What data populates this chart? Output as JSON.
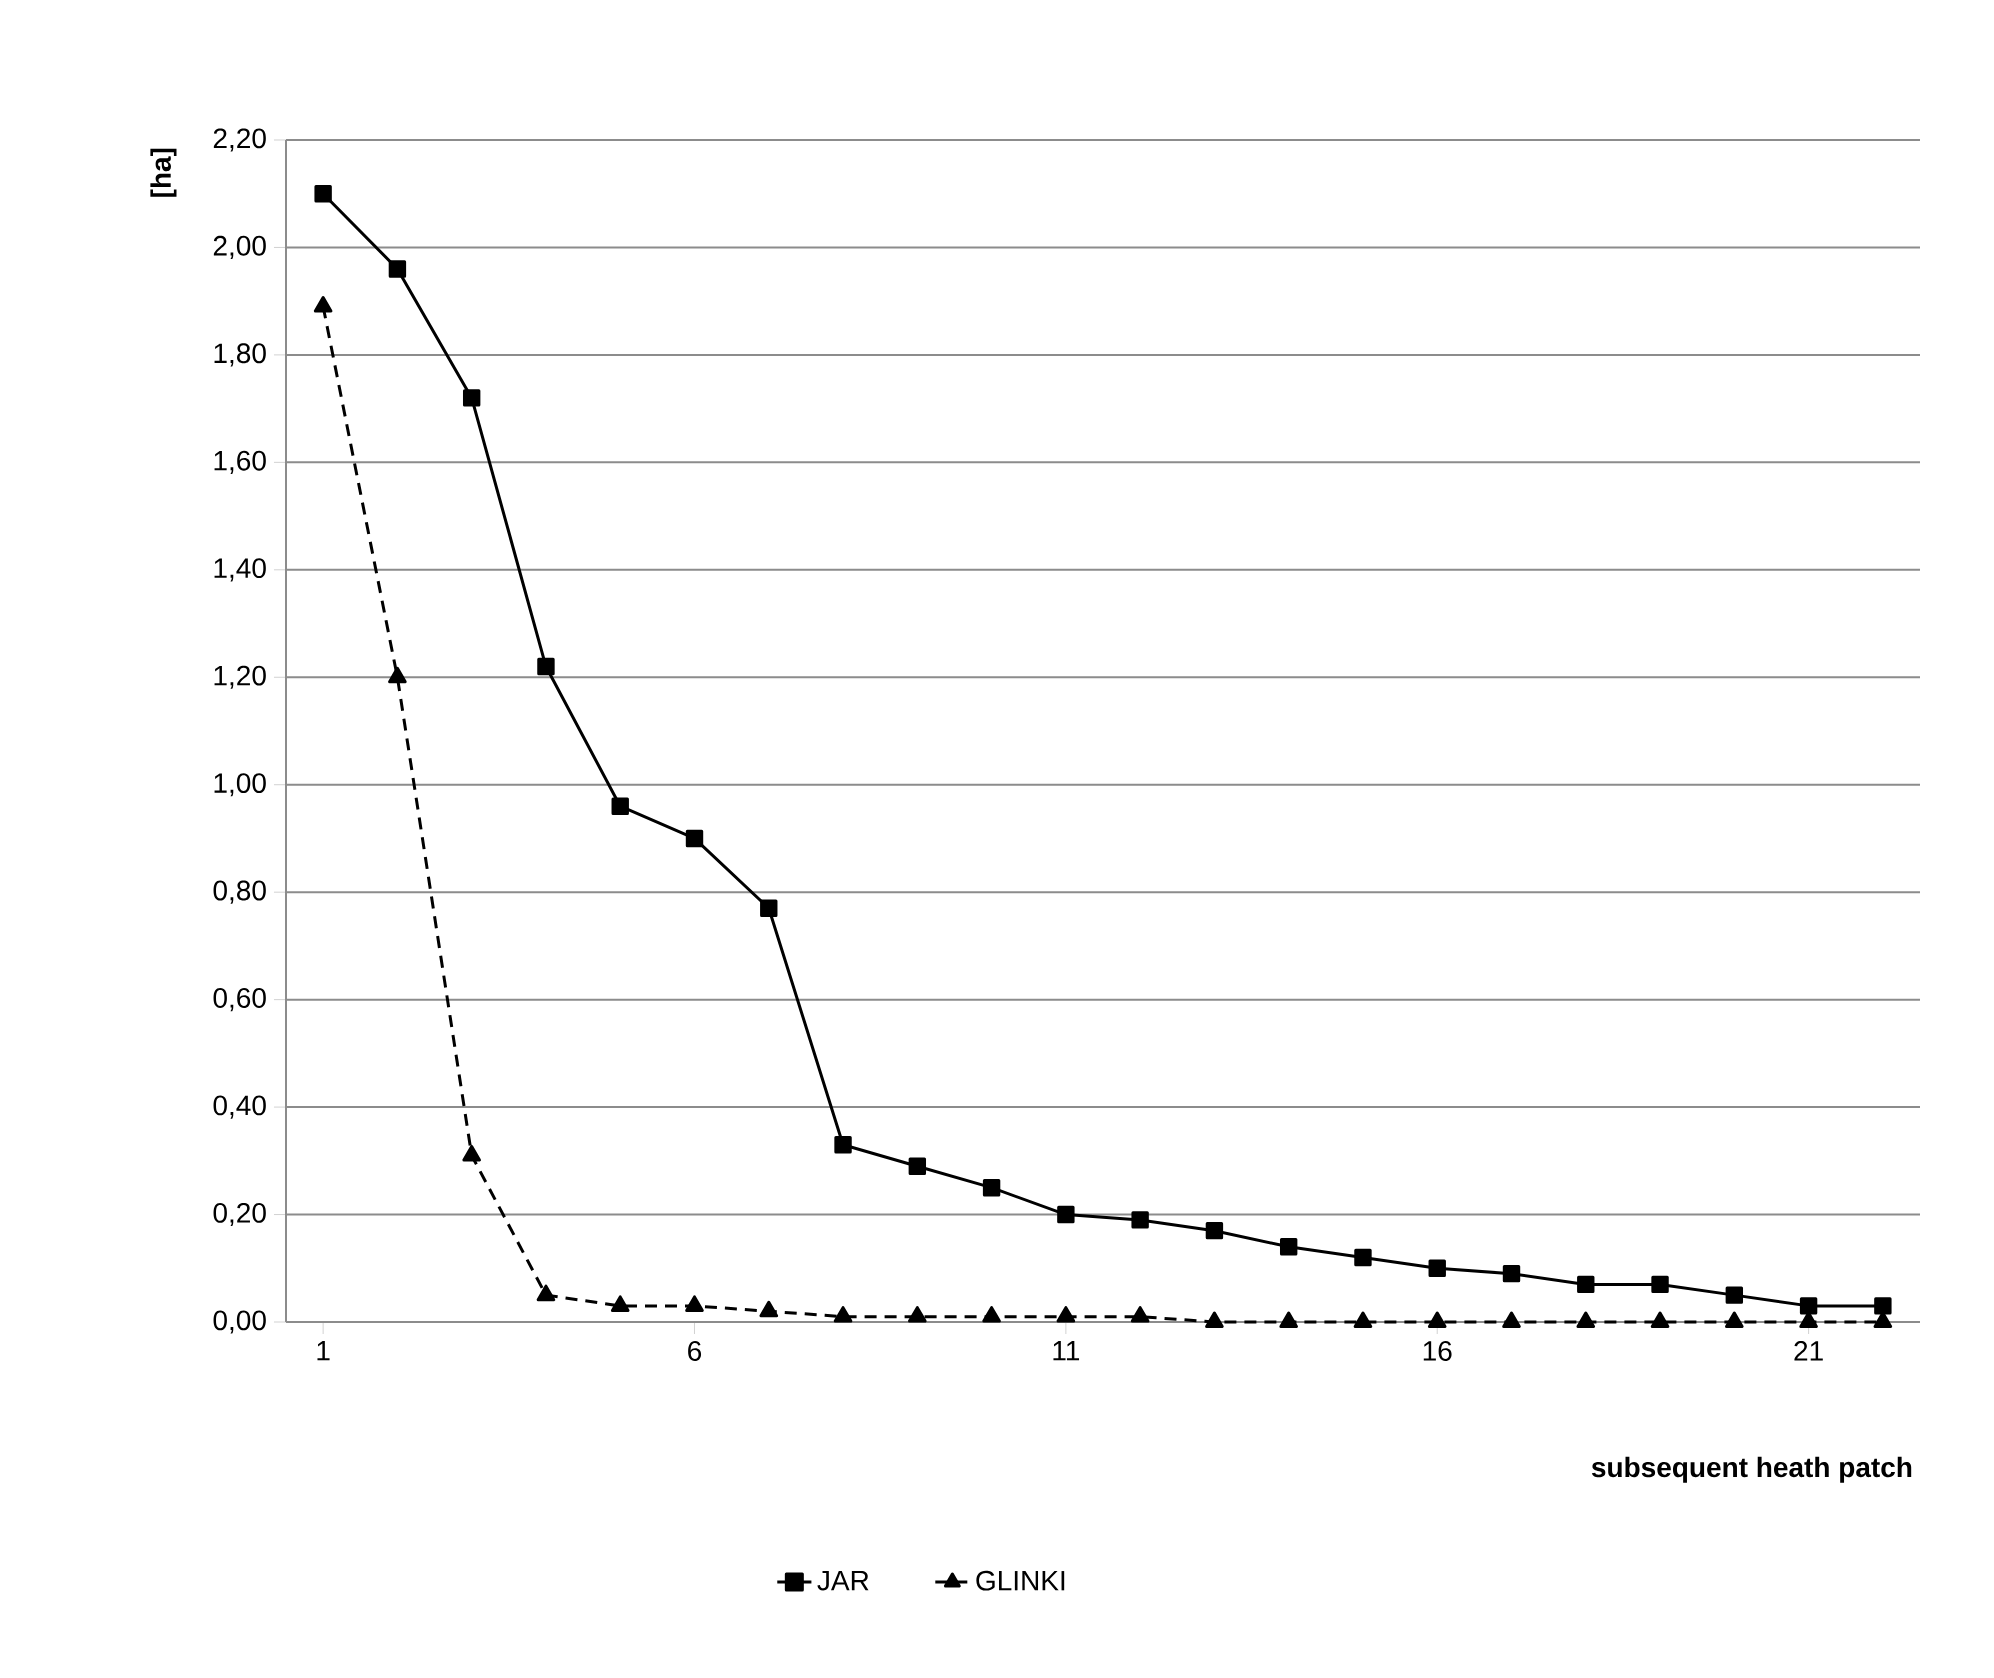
{
  "chart_data": {
    "type": "line",
    "xlabel": "subsequent heath patch",
    "ylabel": "[ha]",
    "x": [
      1,
      2,
      3,
      4,
      5,
      6,
      7,
      8,
      9,
      10,
      11,
      12,
      13,
      14,
      15,
      16,
      17,
      18,
      19,
      20,
      21,
      22
    ],
    "xlim": [
      0.5,
      22.5
    ],
    "xticks": [
      1,
      6,
      11,
      16,
      21
    ],
    "ylim": [
      0,
      2.2
    ],
    "yticks": [
      {
        "value": 0,
        "label": "0,00"
      },
      {
        "value": 0.2,
        "label": "0,20"
      },
      {
        "value": 0.4,
        "label": "0,40"
      },
      {
        "value": 0.6,
        "label": "0,60"
      },
      {
        "value": 0.8,
        "label": "0,80"
      },
      {
        "value": 1.0,
        "label": "1,00"
      },
      {
        "value": 1.2,
        "label": "1,20"
      },
      {
        "value": 1.4,
        "label": "1,40"
      },
      {
        "value": 1.6,
        "label": "1,60"
      },
      {
        "value": 1.8,
        "label": "1,80"
      },
      {
        "value": 2.0,
        "label": "2,00"
      },
      {
        "value": 2.2,
        "label": "2,20"
      }
    ],
    "grid": "y",
    "legend": "bottom",
    "series": [
      {
        "name": "JAR",
        "color": "#000000",
        "marker": "square",
        "line_style": "solid",
        "values": [
          2.1,
          1.96,
          1.72,
          1.22,
          0.96,
          0.9,
          0.77,
          0.33,
          0.29,
          0.25,
          0.2,
          0.19,
          0.17,
          0.14,
          0.12,
          0.1,
          0.09,
          0.07,
          0.07,
          0.05,
          0.03,
          0.03
        ]
      },
      {
        "name": "GLINKI",
        "color": "#000000",
        "marker": "triangle",
        "line_style": "dashed",
        "values": [
          1.89,
          1.2,
          0.31,
          0.05,
          0.03,
          0.03,
          0.02,
          0.01,
          0.01,
          0.01,
          0.01,
          0.01,
          0.0,
          0.0,
          0.0,
          0.0,
          0.0,
          0.0,
          0.0,
          0.0,
          0.0,
          0.0
        ]
      }
    ]
  }
}
